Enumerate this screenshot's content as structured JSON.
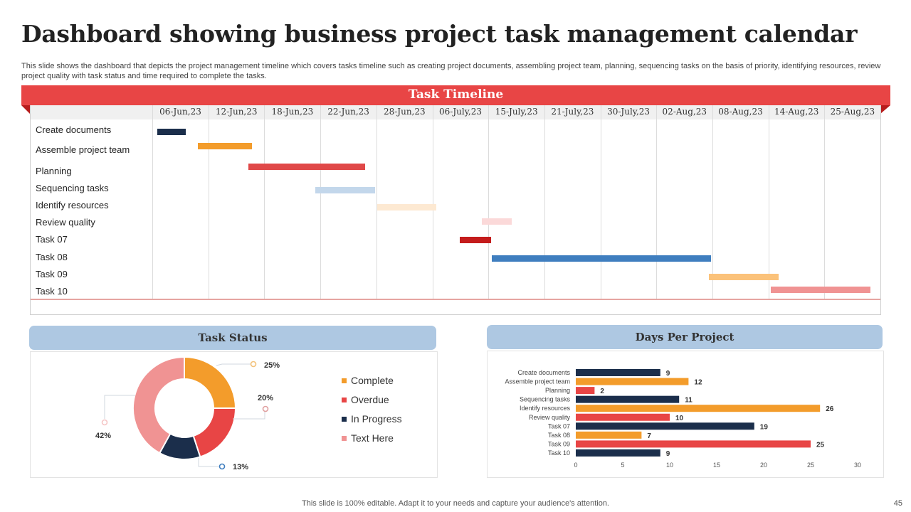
{
  "title": "Dashboard showing business project task management calendar",
  "subtitle": "This slide shows the dashboard that depicts the project management timeline which covers tasks timeline such as creating project documents, assembling project team, planning, sequencing tasks on the basis of priority, identifying resources, review project quality with task status and time required to complete the tasks.",
  "timeline": {
    "title": "Task Timeline",
    "columns": [
      "06-Jun,23",
      "12-Jun,23",
      "18-Jun,23",
      "22-Jun,23",
      "28-Jun,23",
      "06-July,23",
      "15-July,23",
      "21-July,23",
      "30-July,23",
      "02-Aug,23",
      "08-Aug,23",
      "14-Aug,23",
      "25-Aug,23"
    ],
    "tasks": [
      {
        "label": "Create documents",
        "start_col": 0.09,
        "end_col": 0.6,
        "color": "#1b2e4b"
      },
      {
        "label": "Assemble  project team",
        "start_col": 0.81,
        "end_col": 1.78,
        "color": "#f39c2b"
      },
      {
        "label": "Planning",
        "start_col": 1.72,
        "end_col": 3.8,
        "color": "#e04848"
      },
      {
        "label": "Sequencing tasks",
        "start_col": 2.91,
        "end_col": 3.98,
        "color": "#c3d7eb"
      },
      {
        "label": "Identify resources",
        "start_col": 4.02,
        "end_col": 5.07,
        "color": "#fde9d2"
      },
      {
        "label": "Review quality",
        "start_col": 5.88,
        "end_col": 6.42,
        "color": "#fbd9d9"
      },
      {
        "label": "Task  07",
        "start_col": 5.49,
        "end_col": 6.05,
        "color": "#c41c1c"
      },
      {
        "label": "Task  08",
        "start_col": 6.06,
        "end_col": 9.97,
        "color": "#3f7ebf"
      },
      {
        "label": "Task  09",
        "start_col": 9.94,
        "end_col": 11.18,
        "color": "#fbc27a"
      },
      {
        "label": "Task  10",
        "start_col": 11.04,
        "end_col": 12.82,
        "color": "#f09393"
      }
    ]
  },
  "chart_data": [
    {
      "type": "pie",
      "title": "Task Status",
      "donut": true,
      "categories": [
        "Complete",
        "Overdue",
        "In Progress",
        "Text Here"
      ],
      "values": [
        25,
        20,
        13,
        42
      ],
      "labels": [
        "25%",
        "20%",
        "13%",
        "42%"
      ],
      "colors": [
        "#f39c2b",
        "#e84545",
        "#1b2e4b",
        "#f09393"
      ],
      "legend": "right"
    },
    {
      "type": "bar",
      "orientation": "horizontal",
      "title": "Days Per Project",
      "categories": [
        "Create documents",
        "Assemble project team",
        "Planning",
        "Sequencing tasks",
        "Identify resources",
        "Review quality",
        "Task 07",
        "Task 08",
        "Task 09",
        "Task 10"
      ],
      "values": [
        9,
        12,
        2,
        11,
        26,
        10,
        19,
        7,
        25,
        9
      ],
      "colors": [
        "#1b2e4b",
        "#f39c2b",
        "#e84545",
        "#1b2e4b",
        "#f39c2b",
        "#e84545",
        "#1b2e4b",
        "#f39c2b",
        "#e84545",
        "#1b2e4b"
      ],
      "xlim": [
        0,
        30
      ],
      "xticks": [
        "0",
        "5",
        "10",
        "15",
        "20",
        "25",
        "30"
      ],
      "grid": false,
      "data_labels": true
    }
  ],
  "footer": "This slide is 100% editable. Adapt it to your needs and capture your audience's attention.",
  "page_number": "45"
}
